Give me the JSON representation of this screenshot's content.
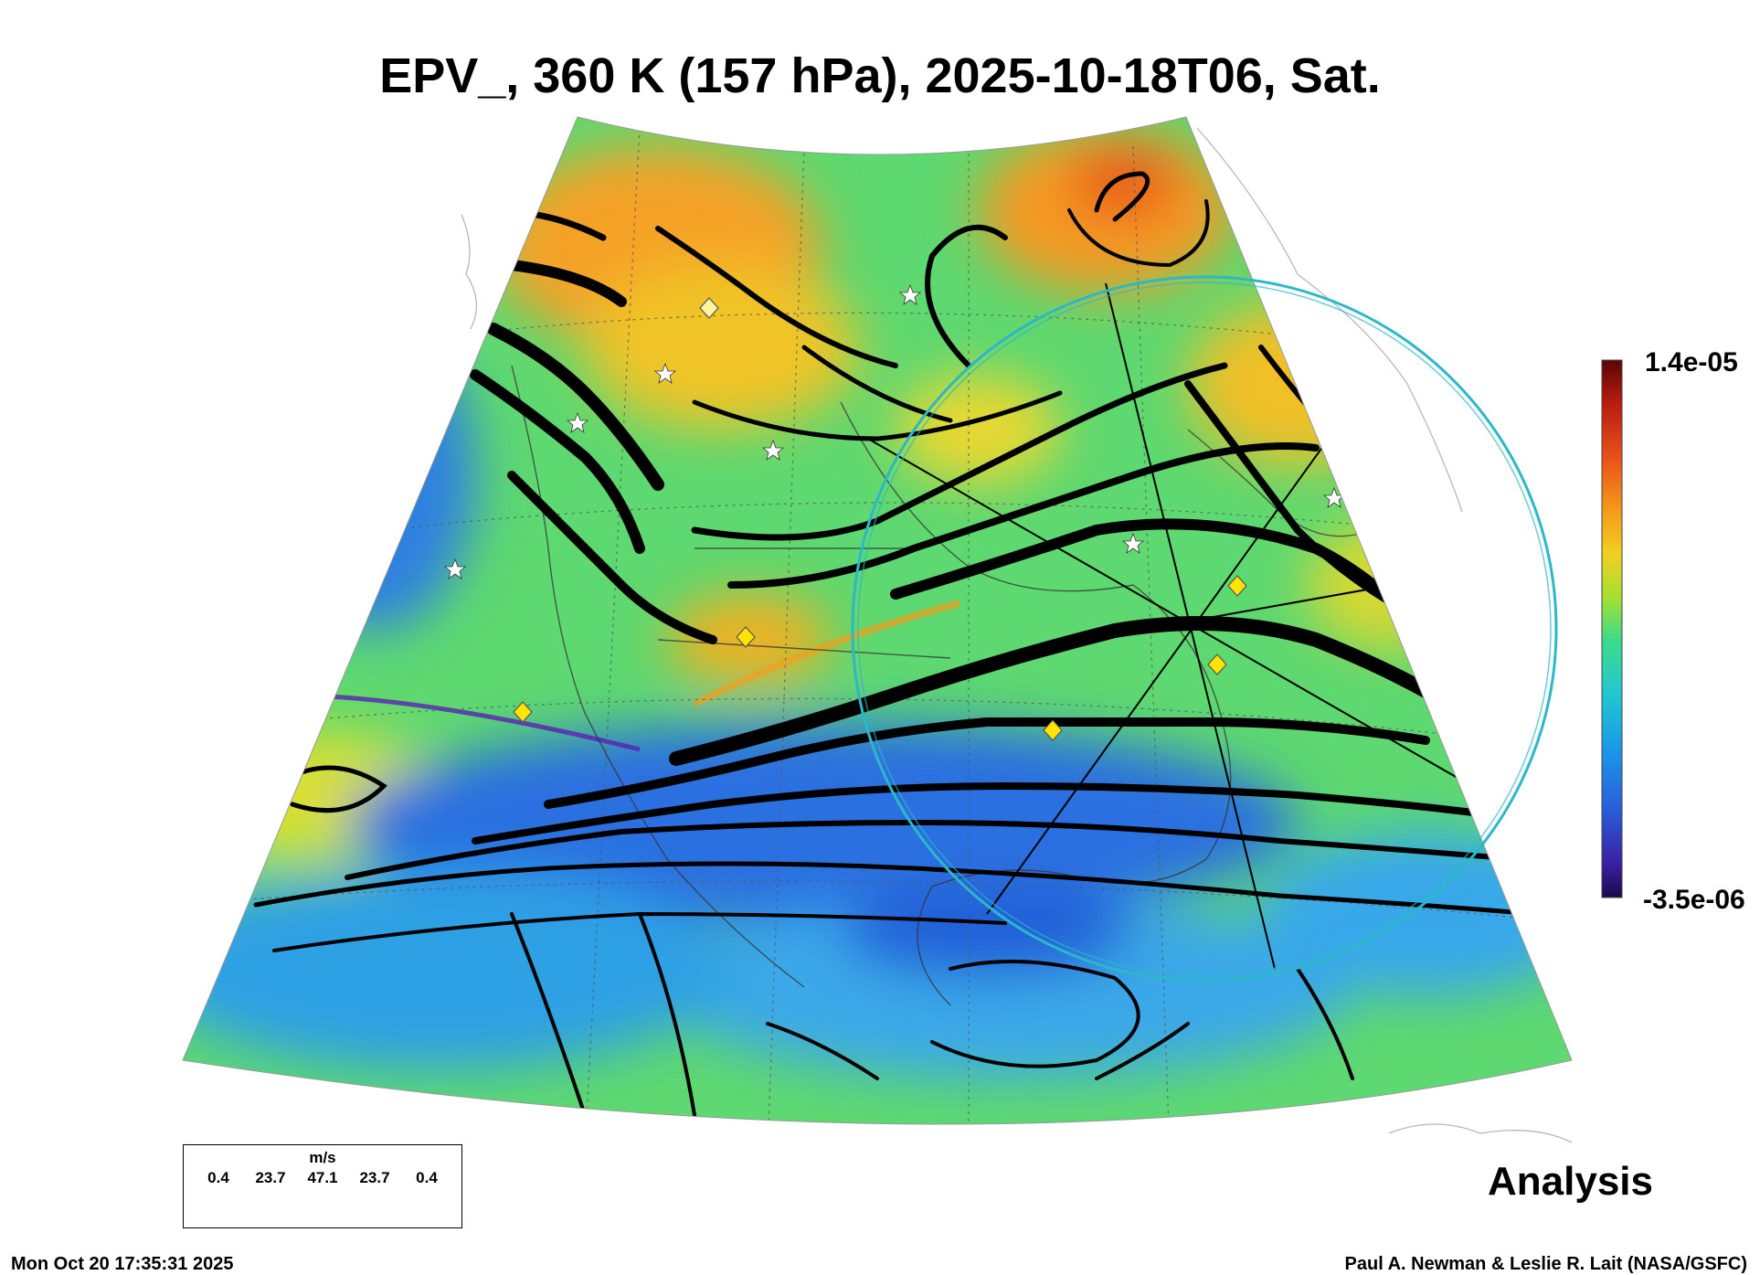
{
  "title": "EPV_, 360 K (157 hPa), 2025-10-18T06, Sat.",
  "colorbar": {
    "max_label": "1.4e-05",
    "min_label": "-3.5e-06",
    "colors": [
      "#1a0a4a",
      "#3a1ea0",
      "#2a5bd8",
      "#1a9be8",
      "#22c8d0",
      "#3ddc8a",
      "#a6e030",
      "#f0d020",
      "#f59a1a",
      "#e8501a",
      "#b81c10",
      "#5a0606"
    ]
  },
  "label": "Analysis",
  "speed_legend": {
    "unit": "m/s",
    "values": [
      "0.4",
      "23.7",
      "47.1",
      "23.7",
      "0.4"
    ]
  },
  "footer": {
    "timestamp": "Mon Oct 20 17:35:31 2025",
    "credit": "Paul A. Newman & Leslie R. Lait (NASA/GSFC)"
  },
  "accent": {
    "circle": "#2bb8c8",
    "diamond": "#ffe400"
  }
}
